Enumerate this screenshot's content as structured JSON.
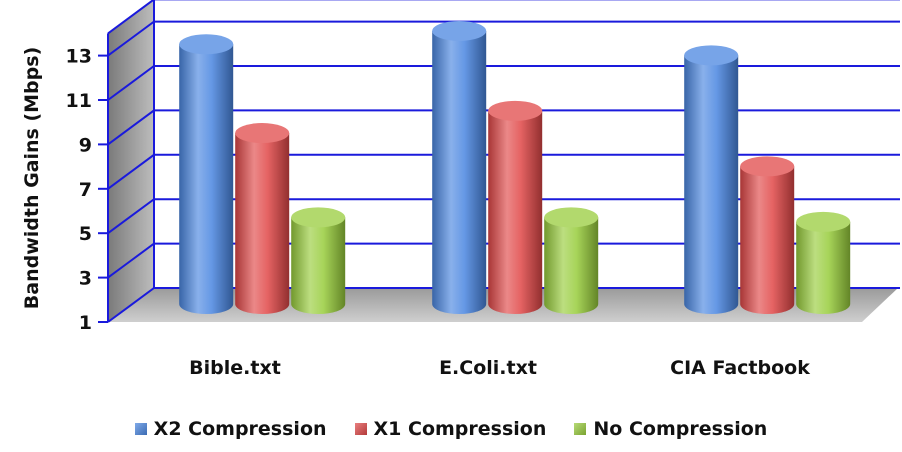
{
  "chart_data": {
    "type": "bar",
    "title": "",
    "xlabel": "",
    "ylabel": "Bandwidth Gains (Mbps)",
    "ylim": [
      1,
      14
    ],
    "yticks": [
      1,
      3,
      5,
      7,
      9,
      11,
      13
    ],
    "grid": true,
    "legend_position": "bottom",
    "categories": [
      "Bible.txt",
      "E.Coli.txt",
      "CIA Factbook"
    ],
    "series": [
      {
        "name": "X2 Compression",
        "values": [
          12.7,
          13.3,
          12.2
        ],
        "color": "#4a86e0"
      },
      {
        "name": "X1 Compression",
        "values": [
          8.7,
          9.7,
          7.2
        ],
        "color": "#e04848"
      },
      {
        "name": "No Compression",
        "values": [
          4.9,
          4.9,
          4.7
        ],
        "color": "#98cc3c"
      }
    ]
  }
}
